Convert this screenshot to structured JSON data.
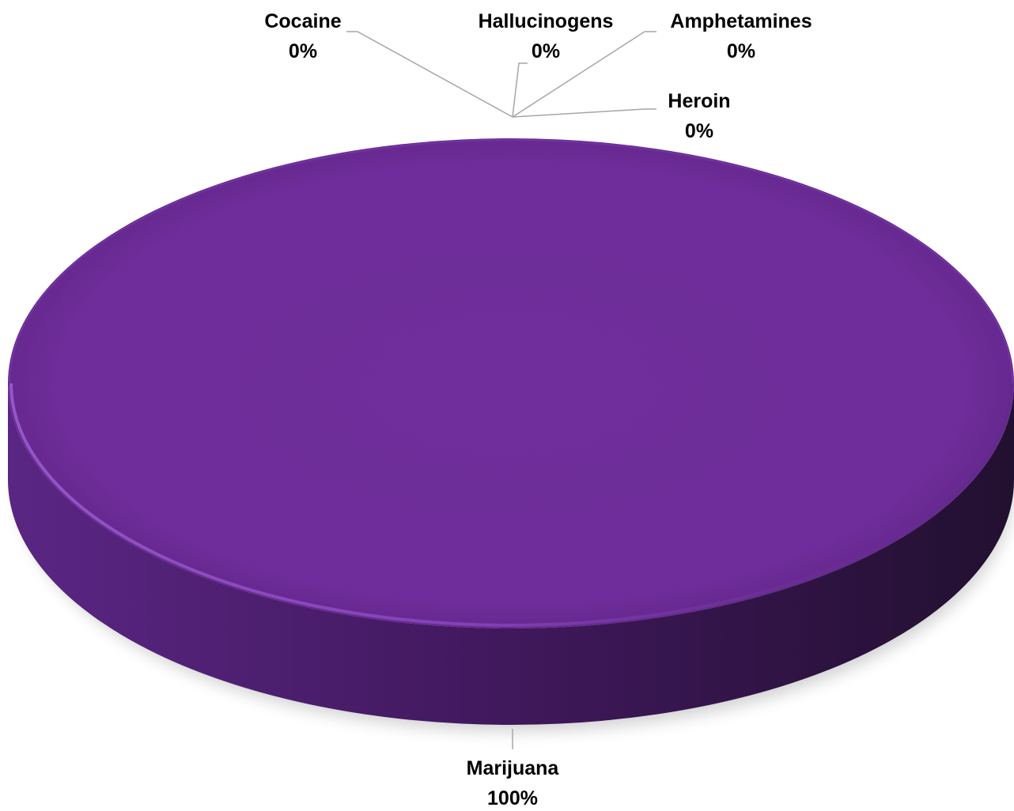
{
  "chart_data": {
    "type": "pie",
    "style": "3d",
    "title": "",
    "categories": [
      "Marijuana",
      "Cocaine",
      "Hallucinogens",
      "Amphetamines",
      "Heroin"
    ],
    "values": [
      100,
      0,
      0,
      0,
      0
    ],
    "labels": [
      {
        "name": "Marijuana",
        "percent": "100%"
      },
      {
        "name": "Cocaine",
        "percent": "0%"
      },
      {
        "name": "Hallucinogens",
        "percent": "0%"
      },
      {
        "name": "Amphetamines",
        "percent": "0%"
      },
      {
        "name": "Heroin",
        "percent": "0%"
      }
    ],
    "colors": {
      "slice": "#6e2d9a",
      "side_light": "#5a2684",
      "side_dark": "#261036",
      "leader_line": "#a6a6a6",
      "label_text": "#000000"
    },
    "legend": "none"
  }
}
